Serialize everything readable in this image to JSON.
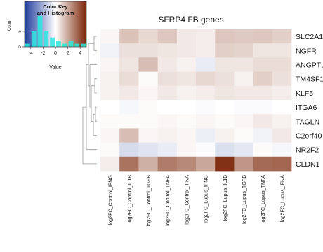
{
  "chart_data": {
    "type": "heatmap",
    "title": "SFRP4 FB genes",
    "rows": [
      "SLC2A1",
      "NGFR",
      "ANGPTL",
      "TM4SF1",
      "KLF5",
      "ITGA6",
      "TAGLN",
      "C2orf40",
      "NR2F2",
      "CLDN1"
    ],
    "columns": [
      "log2FC_Control_IFNG",
      "log2FC_Control_IL1B",
      "log2FC_Control_TGFB",
      "log2FC_Control_TNFA",
      "log2FC_Control_IFNA",
      "log2FC_Lupus_IFNG",
      "log2FC_Lupus_IL1B",
      "log2FC_Lupus_TGFB",
      "log2FC_Lupus_TNFA",
      "log2FC_Lupus_IFNA"
    ],
    "values": [
      [
        0.2,
        1.4,
        0.9,
        1.3,
        0.5,
        0.4,
        1.3,
        1.2,
        1.3,
        1.1
      ],
      [
        -0.3,
        0.7,
        0.7,
        0.6,
        0.5,
        0.4,
        1.1,
        1.0,
        0.6,
        0.6
      ],
      [
        0.2,
        0.6,
        1.5,
        0.5,
        0.3,
        -0.5,
        0.6,
        0.6,
        0.8,
        0.8
      ],
      [
        0.3,
        0.8,
        0.1,
        0.7,
        0.6,
        0.9,
        0.7,
        0.3,
        1.1,
        0.7
      ],
      [
        0.3,
        0.5,
        0.2,
        0.5,
        0.3,
        0.4,
        0.6,
        0.5,
        0.5,
        0.4
      ],
      [
        0.0,
        -0.2,
        0.1,
        0.0,
        0.0,
        -0.1,
        0.0,
        -0.1,
        -0.1,
        0.0
      ],
      [
        0.1,
        0.1,
        0.1,
        0.2,
        0.1,
        0.2,
        0.1,
        0.2,
        0.5,
        0.3
      ],
      [
        0.2,
        1.5,
        0.2,
        0.3,
        0.2,
        -0.4,
        0.3,
        0.1,
        -0.3,
        0.5
      ],
      [
        0.1,
        -0.9,
        -0.7,
        -0.5,
        0.2,
        -0.1,
        -0.8,
        -0.6,
        0.1,
        -0.2
      ],
      [
        0.4,
        3.2,
        1.8,
        3.0,
        2.7,
        2.0,
        4.7,
        2.4,
        3.4,
        3.5
      ]
    ],
    "color_key": {
      "title_lines": [
        "Color Key",
        "and Histogram"
      ],
      "xlabel": "Value",
      "ylabel": "Count",
      "x_ticks": [
        "-4",
        "-2",
        "0",
        "2",
        "4"
      ],
      "x_tick_values": [
        -4,
        -2,
        0,
        2,
        4
      ],
      "y_ticks": [
        "0",
        "5"
      ],
      "y_tick_values": [
        0,
        5
      ],
      "range": [
        -5,
        5
      ],
      "low_color": "#1f3c9c",
      "mid_color": "#ffffff",
      "high_color": "#7a2406",
      "histogram_color": "#2ee8e0",
      "histogram_counts": [
        1,
        5,
        10,
        5,
        3,
        2,
        1,
        2,
        1,
        1
      ]
    },
    "row_dendrogram": true
  }
}
